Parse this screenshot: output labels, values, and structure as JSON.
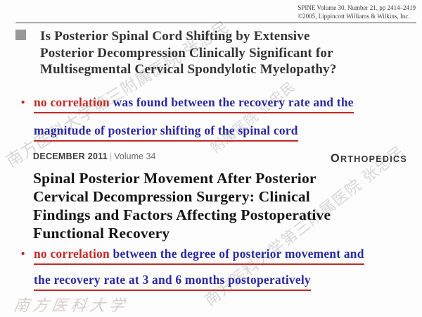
{
  "journal1": {
    "citation_line1": "SPINE Volume 30, Number 21, pp 2414–2419",
    "citation_line2": "©2005, Lippincott Williams & Wilkins, Inc."
  },
  "article1": {
    "title_lines": [
      "Is Posterior Spinal Cord Shifting by Extensive",
      "Posterior Decompression Clinically Significant for",
      "Multisegmental Cervical Spondylotic Myelopathy?"
    ]
  },
  "bullet1": {
    "marker": "•",
    "lead": "no correlation",
    "line1_rest": " was found between the recovery rate and the",
    "line2": "magnitude of posterior shifting of the spinal cord"
  },
  "journal2": {
    "issue": "DECEMBER 2011",
    "separator": "|",
    "volume": "Volume 34",
    "logo_first": "O",
    "logo_rest": "RTHOPEDICS"
  },
  "article2": {
    "title_lines": [
      "Spinal Posterior Movement After Posterior",
      "Cervical Decompression Surgery: Clinical",
      "Findings and Factors Affecting Postoperative",
      "Functional Recovery"
    ]
  },
  "bullet2": {
    "marker": "•",
    "lead": "no correlation",
    "line1_rest": " between the degree of posterior movement and",
    "line2": "the recovery rate at 3 and 6 months postoperatively"
  },
  "watermarks": {
    "diagonal_full": "南方医科大学第三附属医院 张忠民",
    "diagonal_partial": "附属医院 张忠民",
    "script_signature": "南方医科大学"
  },
  "colors": {
    "accent_red": "#c22b27",
    "accent_blue": "#2a2aa0",
    "bullet_square_gray": "#999999"
  }
}
